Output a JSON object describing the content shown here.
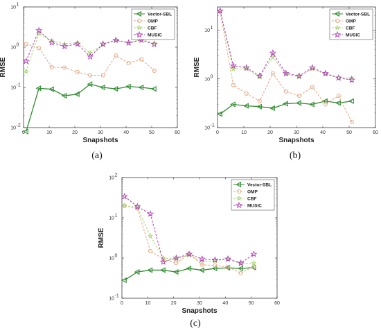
{
  "chart_data": [
    {
      "type": "line",
      "panel_label": "(a)",
      "xlabel": "Snapshots",
      "ylabel": "RMSE",
      "xlim": [
        0,
        60
      ],
      "ylim": [
        0.01,
        10
      ],
      "yscale": "log",
      "xticks": [
        0,
        10,
        20,
        30,
        40,
        50,
        60
      ],
      "yticks": [
        {
          "v": 0.01,
          "base": "10",
          "exp": "-2"
        },
        {
          "v": 0.1,
          "base": "10",
          "exp": "-1"
        },
        {
          "v": 1,
          "base": "10",
          "exp": "0"
        },
        {
          "v": 10,
          "base": "10",
          "exp": "1"
        }
      ],
      "legend_position": "top-right",
      "x": [
        1,
        6,
        11,
        16,
        21,
        26,
        31,
        36,
        41,
        46,
        51
      ],
      "series": [
        {
          "name": "Vector-SBL",
          "color": "#2e8b2e",
          "values": [
            0.008,
            0.095,
            0.09,
            0.062,
            0.068,
            0.12,
            0.1,
            0.092,
            0.105,
            0.1,
            0.092
          ]
        },
        {
          "name": "OMP",
          "color": "#e8a37c",
          "values": [
            1.2,
            0.95,
            0.32,
            0.31,
            0.24,
            0.2,
            0.2,
            0.62,
            0.4,
            0.5,
            0.26
          ]
        },
        {
          "name": "CBF",
          "color": "#a8d870",
          "values": [
            0.25,
            2.2,
            1.45,
            1.2,
            1.3,
            0.72,
            1.15,
            1.45,
            1.3,
            1.55,
            1.25
          ]
        },
        {
          "name": "MUSIC",
          "color": "#b040b8",
          "values": [
            0.45,
            2.6,
            1.3,
            1.05,
            1.2,
            0.58,
            1.2,
            1.5,
            1.28,
            1.5,
            1.18
          ]
        }
      ]
    },
    {
      "type": "line",
      "panel_label": "(b)",
      "xlabel": "Snapshots",
      "ylabel": "RMSE",
      "xlim": [
        0,
        60
      ],
      "ylim": [
        0.1,
        30
      ],
      "yscale": "log",
      "xticks": [
        0,
        10,
        20,
        30,
        40,
        50,
        60
      ],
      "yticks": [
        {
          "v": 0.1,
          "base": "10",
          "exp": "-1"
        },
        {
          "v": 1,
          "base": "10",
          "exp": "0"
        },
        {
          "v": 10,
          "base": "10",
          "exp": "1"
        }
      ],
      "legend_position": "top-right",
      "x": [
        1,
        6,
        11,
        16,
        21,
        26,
        31,
        36,
        41,
        46,
        51
      ],
      "series": [
        {
          "name": "Vector-SBL",
          "color": "#2e8b2e",
          "values": [
            0.19,
            0.3,
            0.28,
            0.27,
            0.25,
            0.31,
            0.32,
            0.3,
            0.35,
            0.32,
            0.35
          ]
        },
        {
          "name": "OMP",
          "color": "#e8a37c",
          "values": [
            24,
            0.75,
            0.5,
            0.35,
            1.3,
            0.55,
            0.45,
            0.68,
            0.3,
            0.45,
            0.13
          ]
        },
        {
          "name": "CBF",
          "color": "#a8d870",
          "values": [
            25,
            1.6,
            1.6,
            1.1,
            2.8,
            1.25,
            1.1,
            1.6,
            1.25,
            1.05,
            1.05
          ]
        },
        {
          "name": "MUSIC",
          "color": "#b040b8",
          "values": [
            25,
            1.85,
            1.7,
            1.15,
            3.4,
            1.3,
            1.15,
            1.7,
            1.3,
            1.05,
            0.95
          ]
        }
      ]
    },
    {
      "type": "line",
      "panel_label": "(c)",
      "xlabel": "Snapshots",
      "ylabel": "RMSE",
      "xlim": [
        0,
        60
      ],
      "ylim": [
        0.1,
        100
      ],
      "yscale": "log",
      "xticks": [
        0,
        10,
        20,
        30,
        40,
        50,
        60
      ],
      "yticks": [
        {
          "v": 0.1,
          "base": "10",
          "exp": "-1"
        },
        {
          "v": 1,
          "base": "10",
          "exp": "0"
        },
        {
          "v": 10,
          "base": "10",
          "exp": "1"
        },
        {
          "v": 100,
          "base": "10",
          "exp": "2"
        }
      ],
      "legend_position": "top-right",
      "x": [
        1,
        6,
        11,
        16,
        21,
        26,
        31,
        36,
        41,
        46,
        51
      ],
      "series": [
        {
          "name": "Vector-SBL",
          "color": "#2e8b2e",
          "values": [
            0.28,
            0.45,
            0.5,
            0.5,
            0.45,
            0.55,
            0.5,
            0.55,
            0.57,
            0.55,
            0.58
          ]
        },
        {
          "name": "OMP",
          "color": "#e8a37c",
          "values": [
            20,
            17,
            1.5,
            0.95,
            0.75,
            1.25,
            0.68,
            0.65,
            0.6,
            0.42,
            0.62
          ]
        },
        {
          "name": "CBF",
          "color": "#a8d870",
          "values": [
            20,
            18,
            3.5,
            1.0,
            0.95,
            1.2,
            0.8,
            0.85,
            0.95,
            0.72,
            0.75
          ]
        },
        {
          "name": "MUSIC",
          "color": "#b040b8",
          "values": [
            34,
            19,
            12.5,
            0.8,
            1.0,
            1.25,
            0.95,
            0.9,
            0.95,
            0.75,
            1.25
          ]
        }
      ]
    }
  ]
}
